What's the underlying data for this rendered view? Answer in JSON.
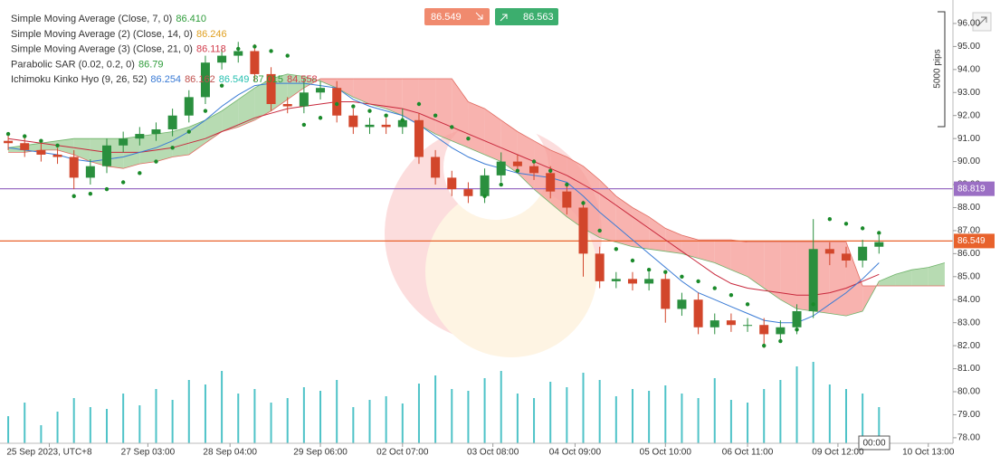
{
  "toolbar": {
    "sell_price": "86.549",
    "buy_price": "86.563",
    "time_box": "00:00",
    "pips_label": "5000 pips"
  },
  "legend": [
    {
      "label": "Simple Moving Average (Close, 7, 0)",
      "values": [
        {
          "text": "86.410",
          "color": "#2e9c3a"
        }
      ]
    },
    {
      "label": "Simple Moving Average (2) (Close, 14, 0)",
      "values": [
        {
          "text": "86.246",
          "color": "#e0a020"
        }
      ]
    },
    {
      "label": "Simple Moving Average (3) (Close, 21, 0)",
      "values": [
        {
          "text": "86.118",
          "color": "#d23a4a"
        }
      ]
    },
    {
      "label": "Parabolic SAR (0.02, 0.2, 0)",
      "values": [
        {
          "text": "86.79",
          "color": "#2e9c3a"
        }
      ]
    },
    {
      "label": "Ichimoku Kinko Hyo (9, 26, 52)",
      "values": [
        {
          "text": "86.254",
          "color": "#3a7bd5"
        },
        {
          "text": "86.162",
          "color": "#c0504d"
        },
        {
          "text": "86.549",
          "color": "#26c0b0"
        },
        {
          "text": "87.015",
          "color": "#2e9c3a"
        },
        {
          "text": "84.558",
          "color": "#d23a4a"
        }
      ]
    }
  ],
  "chart_data": {
    "type": "candlestick",
    "xlim": [
      0,
      58
    ],
    "ylim": [
      77.76,
      97.02
    ],
    "xticks": [
      {
        "value": 3,
        "label": "25 Sep 2023, UTC+8"
      },
      {
        "value": 9,
        "label": "27 Sep 03:00"
      },
      {
        "value": 14,
        "label": "28 Sep 04:00"
      },
      {
        "value": 19.5,
        "label": "29 Sep 06:00"
      },
      {
        "value": 24.5,
        "label": "02 Oct 07:00"
      },
      {
        "value": 30,
        "label": "03 Oct 08:00"
      },
      {
        "value": 35,
        "label": "04 Oct 09:00"
      },
      {
        "value": 40.5,
        "label": "05 Oct 10:00"
      },
      {
        "value": 45.5,
        "label": "06 Oct 11:00"
      },
      {
        "value": 51,
        "label": "09 Oct 12:00"
      },
      {
        "value": 56.5,
        "label": "10 Oct 13:00"
      }
    ],
    "yticks": [
      {
        "value": 78,
        "label": "78.00"
      },
      {
        "value": 79,
        "label": "79.00"
      },
      {
        "value": 80,
        "label": "80.00"
      },
      {
        "value": 81,
        "label": "81.00"
      },
      {
        "value": 82,
        "label": "82.00"
      },
      {
        "value": 83,
        "label": "83.00"
      },
      {
        "value": 84,
        "label": "84.00"
      },
      {
        "value": 85,
        "label": "85.00"
      },
      {
        "value": 86,
        "label": "86.00"
      },
      {
        "value": 87,
        "label": "87.00"
      },
      {
        "value": 88,
        "label": "88.00"
      },
      {
        "value": 89,
        "label": "89.00"
      },
      {
        "value": 90,
        "label": "90.00"
      },
      {
        "value": 91,
        "label": "91.00"
      },
      {
        "value": 92,
        "label": "92.00"
      },
      {
        "value": 93,
        "label": "93.00"
      },
      {
        "value": 94,
        "label": "94.00"
      },
      {
        "value": 95,
        "label": "95.00"
      },
      {
        "value": 96,
        "label": "96.00"
      }
    ],
    "up_color": "#2a8f3e",
    "down_color": "#d2462b",
    "open": [
      90.9,
      90.8,
      90.5,
      90.3,
      90.2,
      89.3,
      89.8,
      90.7,
      91.0,
      91.2,
      91.4,
      92.0,
      92.8,
      94.3,
      94.6,
      94.8,
      93.8,
      92.5,
      92.4,
      93.0,
      93.2,
      92.0,
      91.5,
      91.6,
      91.5,
      91.8,
      90.2,
      89.3,
      88.8,
      88.5,
      89.4,
      90.0,
      89.8,
      89.5,
      88.7,
      88.0,
      86.0,
      84.8,
      84.9,
      84.7,
      84.9,
      83.6,
      84.0,
      82.8,
      83.1,
      82.9,
      82.9,
      82.5,
      82.8,
      83.5,
      86.2,
      86.0,
      85.7,
      86.3
    ],
    "high": [
      91.2,
      91.1,
      90.8,
      90.6,
      90.5,
      90.1,
      91.0,
      91.3,
      91.5,
      91.7,
      92.3,
      93.1,
      94.6,
      94.9,
      95.2,
      95.1,
      94.1,
      92.8,
      93.6,
      93.5,
      93.5,
      92.3,
      91.9,
      91.9,
      92.3,
      92.1,
      90.5,
      89.6,
      89.1,
      89.7,
      90.4,
      90.3,
      90.1,
      89.8,
      89.0,
      88.3,
      86.3,
      85.2,
      85.2,
      85.2,
      85.2,
      84.3,
      84.3,
      83.4,
      83.4,
      83.2,
      83.2,
      83.1,
      83.8,
      87.5,
      86.5,
      86.3,
      86.6,
      86.8
    ],
    "low": [
      90.5,
      90.2,
      90.0,
      89.9,
      88.8,
      89.0,
      89.5,
      90.4,
      90.7,
      90.9,
      91.1,
      91.7,
      92.5,
      94.0,
      94.3,
      93.5,
      92.2,
      92.1,
      92.1,
      92.7,
      91.7,
      91.2,
      91.2,
      91.2,
      91.2,
      89.9,
      89.0,
      88.5,
      88.2,
      88.2,
      89.1,
      89.5,
      89.2,
      88.4,
      87.7,
      85.0,
      84.5,
      84.5,
      84.4,
      84.4,
      83.0,
      83.3,
      82.5,
      82.5,
      82.6,
      82.6,
      81.9,
      82.2,
      82.5,
      83.2,
      85.5,
      85.4,
      85.4,
      86.0
    ],
    "close": [
      90.8,
      90.5,
      90.3,
      90.2,
      89.3,
      89.8,
      90.7,
      91.0,
      91.2,
      91.4,
      92.0,
      92.8,
      94.3,
      94.6,
      94.8,
      93.8,
      92.5,
      92.4,
      93.0,
      93.2,
      92.0,
      91.5,
      91.6,
      91.5,
      91.8,
      90.2,
      89.3,
      88.8,
      88.5,
      89.4,
      90.0,
      89.8,
      89.5,
      88.7,
      88.0,
      86.0,
      84.8,
      84.9,
      84.7,
      84.9,
      83.6,
      84.0,
      82.8,
      83.1,
      82.9,
      82.9,
      82.5,
      82.8,
      83.5,
      86.2,
      86.0,
      85.7,
      86.3,
      86.5
    ],
    "volume": {
      "color": "#4fc3c8",
      "values": [
        30,
        45,
        20,
        35,
        50,
        40,
        38,
        55,
        42,
        60,
        48,
        70,
        65,
        80,
        55,
        60,
        45,
        50,
        62,
        58,
        70,
        40,
        48,
        52,
        44,
        66,
        75,
        60,
        58,
        72,
        80,
        55,
        50,
        68,
        62,
        78,
        70,
        52,
        60,
        58,
        64,
        55,
        50,
        72,
        48,
        45,
        60,
        70,
        85,
        90,
        65,
        60,
        55,
        40
      ]
    },
    "sma_7": {
      "color": "#3a7bd5",
      "values": [
        90.6,
        90.5,
        90.4,
        90.3,
        90.1,
        90.0,
        90.1,
        90.2,
        90.4,
        90.6,
        90.9,
        91.3,
        91.8,
        92.4,
        92.9,
        93.3,
        93.4,
        93.4,
        93.4,
        93.3,
        93.2,
        92.7,
        92.4,
        92.2,
        92.0,
        91.6,
        91.1,
        90.6,
        90.2,
        89.9,
        89.7,
        89.5,
        89.4,
        89.3,
        89.1,
        88.5,
        87.8,
        87.2,
        86.6,
        86.0,
        85.4,
        84.8,
        84.3,
        84.0,
        83.7,
        83.4,
        83.1,
        83.0,
        83.0,
        83.3,
        83.8,
        84.3,
        84.9,
        85.6
      ]
    },
    "sma_21": {
      "color": "#c8283c",
      "values": [
        91.0,
        90.9,
        90.8,
        90.7,
        90.6,
        90.5,
        90.4,
        90.4,
        90.4,
        90.5,
        90.6,
        90.8,
        91.0,
        91.3,
        91.6,
        91.9,
        92.1,
        92.3,
        92.4,
        92.5,
        92.6,
        92.6,
        92.5,
        92.4,
        92.3,
        92.1,
        91.8,
        91.5,
        91.2,
        90.9,
        90.6,
        90.3,
        90.0,
        89.7,
        89.4,
        89.0,
        88.6,
        88.1,
        87.6,
        87.1,
        86.6,
        86.1,
        85.6,
        85.1,
        84.7,
        84.5,
        84.4,
        84.3,
        84.2,
        84.2,
        84.3,
        84.5,
        84.8,
        85.1
      ]
    },
    "sar": {
      "color": "#1a8a2a",
      "values": [
        91.2,
        91.1,
        90.9,
        90.7,
        88.5,
        88.6,
        88.8,
        89.1,
        89.5,
        90.0,
        90.6,
        91.3,
        92.2,
        93.3,
        94.9,
        95.0,
        94.8,
        94.6,
        91.6,
        91.9,
        92.5,
        92.4,
        92.2,
        92.0,
        91.8,
        92.5,
        92.0,
        91.5,
        91.0,
        88.5,
        89.0,
        89.6,
        90.0,
        89.6,
        89.0,
        88.2,
        87.0,
        86.2,
        85.7,
        85.3,
        85.2,
        85.0,
        84.8,
        84.5,
        84.2,
        83.8,
        82.0,
        82.2,
        82.7,
        83.8,
        87.5,
        87.3,
        87.1,
        86.9
      ]
    },
    "cloud": {
      "up_color": "#9fcf98",
      "down_color": "#f59a94",
      "span_a": [
        90.6,
        90.7,
        90.8,
        90.9,
        91.0,
        91.0,
        91.0,
        91.0,
        91.1,
        91.2,
        91.3,
        91.5,
        91.8,
        92.2,
        92.7,
        93.2,
        93.6,
        93.8,
        93.7,
        93.5,
        93.2,
        92.8,
        92.5,
        92.3,
        92.0,
        91.6,
        91.2,
        90.9,
        90.6,
        90.3,
        90.0,
        89.5,
        88.8,
        88.2,
        87.6,
        87.1,
        86.7,
        86.5,
        86.3,
        86.2,
        86.1,
        86.0,
        85.8,
        85.6,
        85.3,
        85.0,
        84.5,
        84.0,
        83.6,
        83.5,
        83.4,
        83.3,
        83.5,
        84.8,
        85.1,
        85.3,
        85.4,
        85.6
      ],
      "span_b": [
        90.4,
        90.4,
        90.5,
        90.5,
        90.3,
        90.0,
        89.8,
        89.7,
        89.9,
        90.0,
        90.2,
        90.3,
        90.8,
        91.3,
        91.5,
        91.8,
        92.2,
        92.7,
        93.2,
        93.6,
        93.6,
        93.6,
        93.6,
        93.6,
        93.6,
        93.6,
        93.6,
        93.6,
        92.6,
        92.3,
        91.8,
        91.3,
        90.9,
        90.5,
        90.2,
        89.8,
        89.2,
        88.5,
        88.0,
        87.6,
        87.1,
        86.8,
        86.6,
        86.6,
        86.6,
        86.5,
        86.5,
        86.5,
        86.5,
        86.5,
        86.5,
        86.5,
        84.6,
        84.6,
        84.6,
        84.6,
        84.6,
        84.6
      ]
    },
    "horizontal_lines": [
      {
        "price": 88.819,
        "color": "#9b6fc4"
      },
      {
        "price": 86.549,
        "color": "#e8622c"
      }
    ]
  }
}
